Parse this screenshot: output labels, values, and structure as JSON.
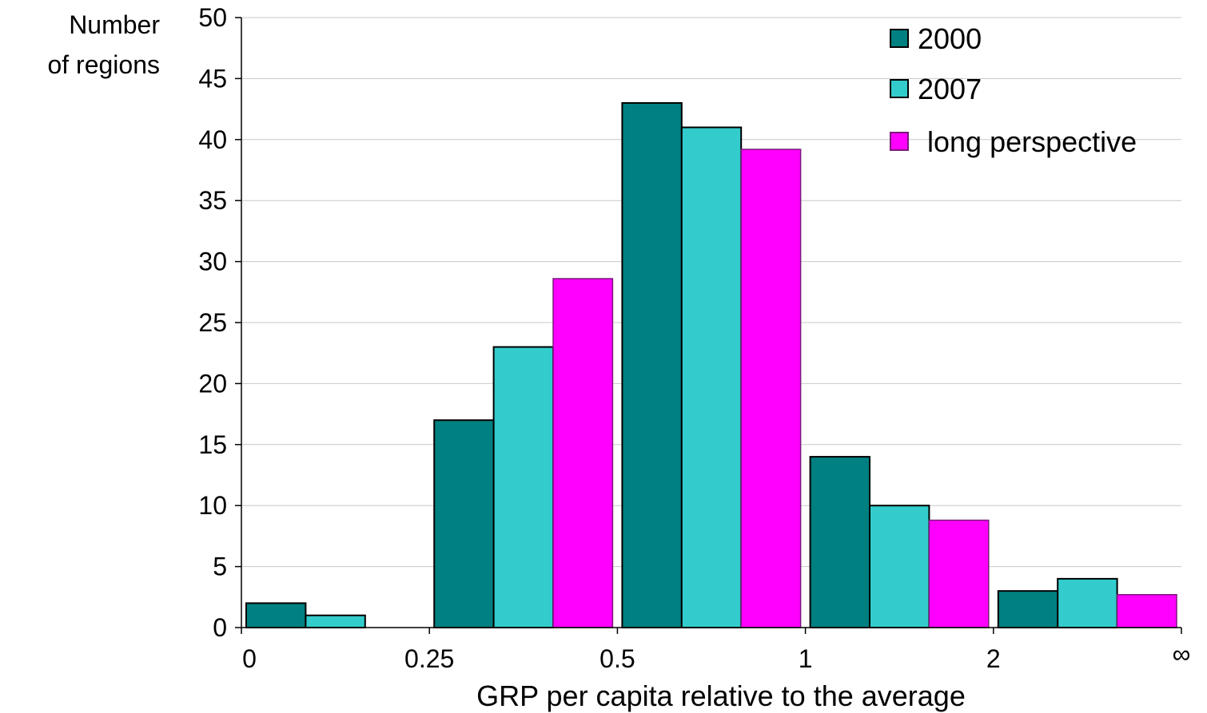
{
  "chart_data": {
    "type": "bar",
    "title": "",
    "ylabel_line1": "Number",
    "ylabel_line2": "of regions",
    "xlabel": "GRP per capita relative to the average",
    "ylim": [
      0,
      50
    ],
    "y_ticks": [
      "0",
      "5",
      "10",
      "15",
      "20",
      "25",
      "30",
      "35",
      "40",
      "45",
      "50"
    ],
    "x_tick_labels": [
      "0",
      "0.25",
      "0.5",
      "1",
      "2",
      "∞"
    ],
    "bins": [
      "0–0.25",
      "0.25–0.5",
      "0.5–1",
      "1–2",
      "2–∞"
    ],
    "grid": true,
    "legend_position": "top-right",
    "series": [
      {
        "name": "2000",
        "color": "#008080",
        "values": [
          2,
          17,
          43,
          14,
          3
        ]
      },
      {
        "name": "2007",
        "color": "#33CCCC",
        "values": [
          1,
          23,
          41,
          10,
          4
        ]
      },
      {
        "name": "long perspective",
        "color": "#FF00FF",
        "values": [
          0,
          28.6,
          39.2,
          8.8,
          2.7
        ]
      }
    ]
  }
}
